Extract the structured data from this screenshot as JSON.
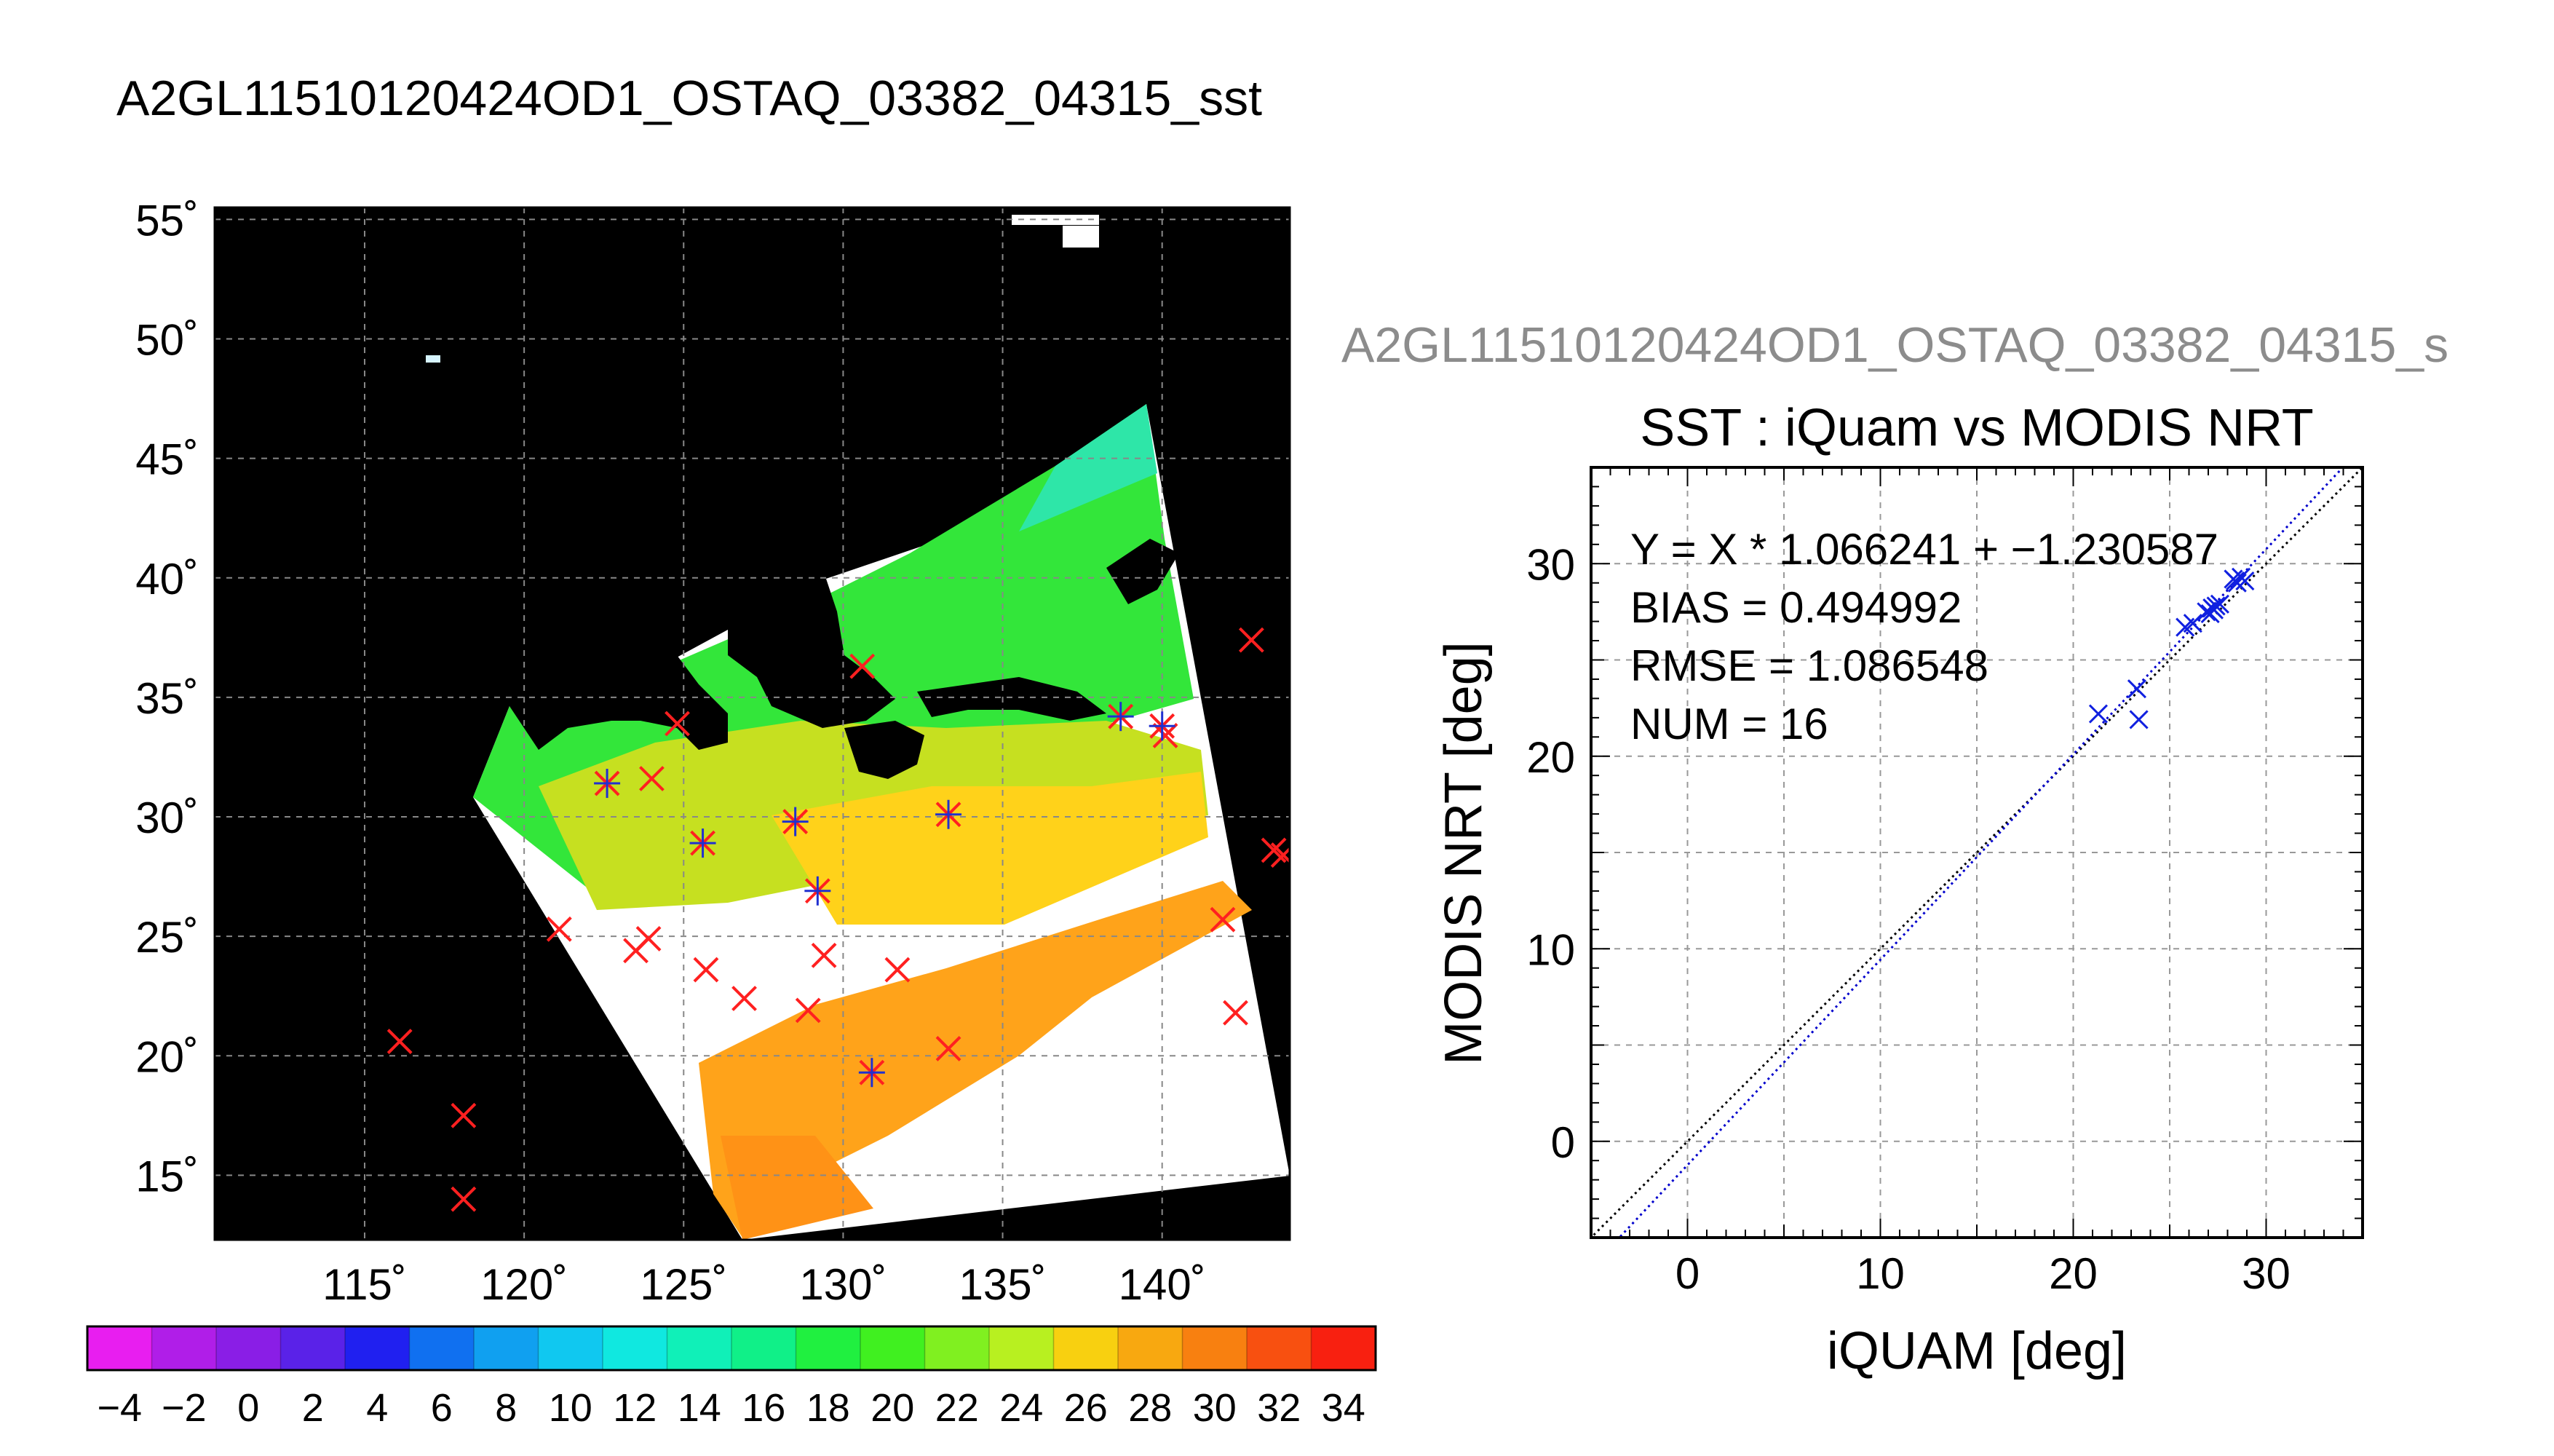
{
  "page": {
    "title": "A2GL11510120424OD1_OSTAQ_03382_04315_sst"
  },
  "map": {
    "lat_ticks": [
      "55˚",
      "50˚",
      "45˚",
      "40˚",
      "35˚",
      "30˚",
      "25˚",
      "20˚",
      "15˚"
    ],
    "lon_ticks": [
      "115˚",
      "120˚",
      "125˚",
      "130˚",
      "135˚",
      "140˚"
    ],
    "lon_range": [
      110.3,
      144.0
    ],
    "lat_range": [
      12.3,
      55.5
    ],
    "background": "#000000",
    "grid": "dashed",
    "colorbar": {
      "labels": [
        "−4",
        "−2",
        "0",
        "2",
        "4",
        "6",
        "8",
        "10",
        "12",
        "14",
        "16",
        "18",
        "20",
        "22",
        "24",
        "26",
        "28",
        "30",
        "32",
        "34"
      ],
      "range": [
        -5,
        35
      ]
    },
    "red_marks": [
      [
        116.1,
        20.6
      ],
      [
        118.1,
        17.5
      ],
      [
        118.1,
        14.0
      ],
      [
        121.1,
        25.3
      ],
      [
        122.6,
        31.4
      ],
      [
        123.5,
        24.4
      ],
      [
        123.9,
        24.9
      ],
      [
        124.0,
        31.6
      ],
      [
        124.8,
        33.9
      ],
      [
        125.6,
        28.9
      ],
      [
        125.7,
        23.6
      ],
      [
        126.9,
        22.4
      ],
      [
        128.5,
        29.8
      ],
      [
        128.9,
        21.9
      ],
      [
        129.2,
        26.9
      ],
      [
        129.4,
        24.2
      ],
      [
        130.6,
        36.3
      ],
      [
        130.9,
        19.3
      ],
      [
        131.7,
        23.6
      ],
      [
        133.3,
        30.1
      ],
      [
        133.3,
        20.3
      ],
      [
        138.7,
        34.2
      ],
      [
        140.0,
        33.8
      ],
      [
        140.1,
        33.4
      ],
      [
        141.9,
        25.7
      ],
      [
        142.3,
        21.8
      ],
      [
        142.8,
        37.4
      ],
      [
        143.5,
        28.6
      ],
      [
        143.8,
        28.4
      ]
    ],
    "blue_marks": [
      [
        122.6,
        31.4
      ],
      [
        125.6,
        28.9
      ],
      [
        128.5,
        29.8
      ],
      [
        129.2,
        26.9
      ],
      [
        130.9,
        19.3
      ],
      [
        133.3,
        30.1
      ],
      [
        138.7,
        34.2
      ],
      [
        140.0,
        33.8
      ]
    ]
  },
  "scatter": {
    "overlay_title": "A2GL11510120424OD1_OSTAQ_03382_04315_s",
    "title": "SST : iQuam vs MODIS NRT",
    "xlabel": "iQUAM [deg]",
    "ylabel": "MODIS NRT [deg]",
    "x_ticks": [
      "0",
      "10",
      "20",
      "30"
    ],
    "y_ticks": [
      "0",
      "10",
      "20",
      "30"
    ],
    "stats": [
      "Y = X * 1.066241 + −1.230587",
      "BIAS = 0.494992",
      "RMSE = 1.086548",
      "NUM = 16"
    ]
  },
  "chart_data": {
    "type": "scatter",
    "title": "SST : iQuam vs MODIS NRT",
    "xlabel": "iQUAM [deg]",
    "ylabel": "MODIS NRT [deg]",
    "xlim": [
      -5,
      35
    ],
    "ylim": [
      -5,
      35
    ],
    "grid": true,
    "series": [
      {
        "points": [
          [
            21.3,
            22.2
          ],
          [
            23.3,
            23.5
          ],
          [
            23.4,
            21.9
          ],
          [
            25.8,
            26.7
          ],
          [
            26.9,
            27.5
          ],
          [
            27.2,
            27.7
          ],
          [
            27.3,
            27.6
          ],
          [
            27.6,
            27.9
          ],
          [
            28.3,
            29.2
          ],
          [
            28.5,
            29.0
          ],
          [
            28.7,
            29.3
          ],
          [
            28.9,
            29.1
          ],
          [
            27.1,
            27.4
          ],
          [
            26.2,
            26.9
          ],
          [
            28.4,
            29.1
          ],
          [
            27.4,
            27.8
          ]
        ]
      }
    ],
    "lines": [
      {
        "slope": 1.0,
        "intercept": 0.0,
        "color": "#000000",
        "style": "dotted"
      },
      {
        "slope": 1.066241,
        "intercept": -1.230587,
        "color": "#0000cc",
        "style": "dotted"
      }
    ],
    "stats": {
      "fit_slope": 1.066241,
      "fit_intercept": -1.230587,
      "bias": 0.494992,
      "rmse": 1.086548,
      "num": 16
    }
  }
}
